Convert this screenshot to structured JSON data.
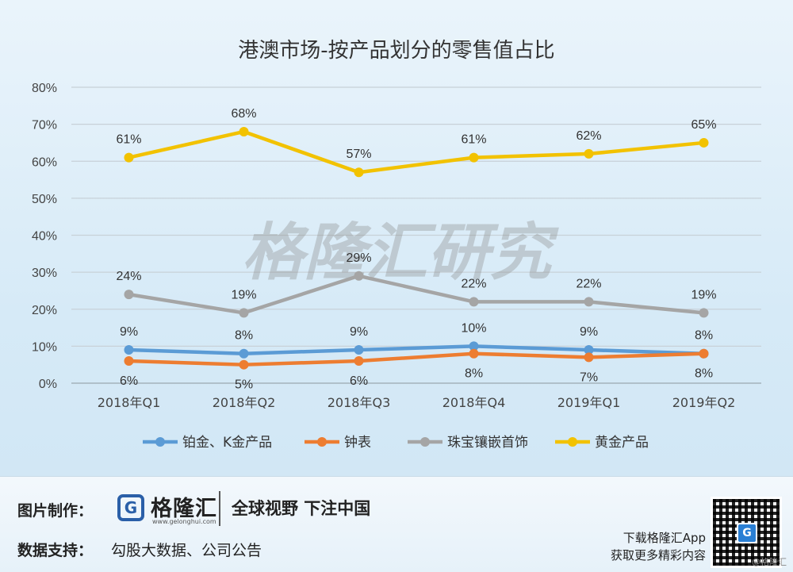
{
  "chart_data": {
    "type": "line",
    "title": "港澳市场-按产品划分的零售值占比",
    "watermark": "格隆汇研究",
    "categories": [
      "2018年Q1",
      "2018年Q2",
      "2018年Q3",
      "2018年Q4",
      "2019年Q1",
      "2019年Q2"
    ],
    "y_ticks": [
      "0%",
      "10%",
      "20%",
      "30%",
      "40%",
      "50%",
      "60%",
      "70%",
      "80%"
    ],
    "ylim": [
      0,
      80
    ],
    "grid": true,
    "legend_position": "bottom",
    "series": [
      {
        "name": "铂金、K金产品",
        "color": "#5b9bd5",
        "values": [
          9,
          8,
          9,
          10,
          9,
          8
        ],
        "labels": [
          "9%",
          "8%",
          "9%",
          "10%",
          "9%",
          "8%"
        ],
        "label_side": "above"
      },
      {
        "name": "钟表",
        "color": "#ed7d31",
        "values": [
          6,
          5,
          6,
          8,
          7,
          8
        ],
        "labels": [
          "6%",
          "5%",
          "6%",
          "8%",
          "7%",
          "8%"
        ],
        "label_side": "below"
      },
      {
        "name": "珠宝镶嵌首饰",
        "color": "#a5a5a5",
        "values": [
          24,
          19,
          29,
          22,
          22,
          19
        ],
        "labels": [
          "24%",
          "19%",
          "29%",
          "22%",
          "22%",
          "19%"
        ],
        "label_side": "above"
      },
      {
        "name": "黄金产品",
        "color": "#f2c200",
        "values": [
          61,
          68,
          57,
          61,
          62,
          65
        ],
        "labels": [
          "61%",
          "68%",
          "57%",
          "61%",
          "62%",
          "65%"
        ],
        "label_side": "above"
      }
    ]
  },
  "footer": {
    "image_label": "图片制作：",
    "data_label": "数据支持：",
    "data_source": "勾股大数据、公司公告",
    "logo_letter": "G",
    "logo_name": "格隆汇",
    "logo_url": "www.gelonghui.com",
    "slogan": "全球视野 下注中国",
    "app_line1": "下载格隆汇App",
    "app_line2": "获取更多精彩内容",
    "qr_letter": "G",
    "corner_mark": "@格隆汇"
  }
}
